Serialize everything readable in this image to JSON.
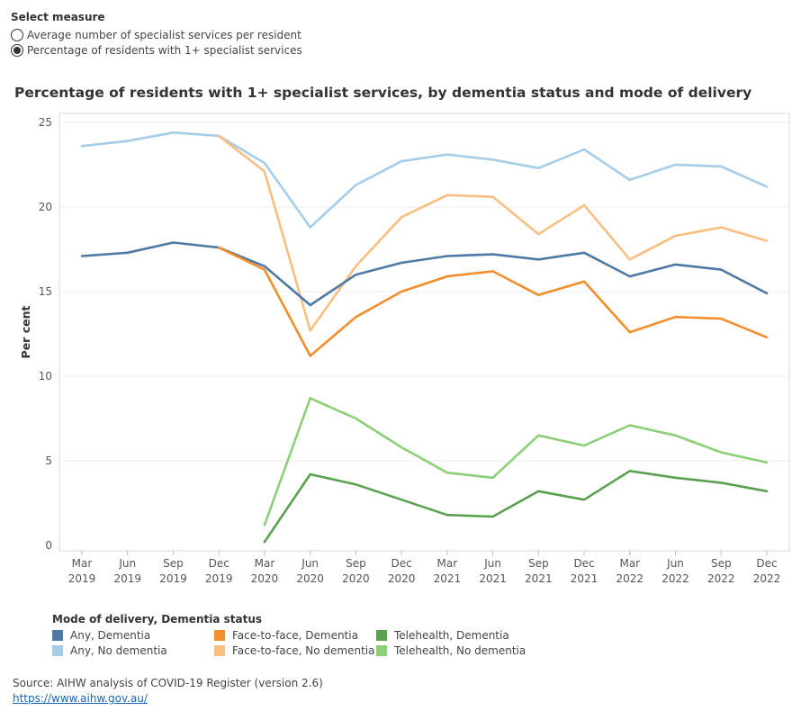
{
  "measure": {
    "header": "Select measure",
    "options": [
      {
        "label": "Average number of specialist services per resident",
        "selected": false
      },
      {
        "label": "Percentage of residents with 1+ specialist services",
        "selected": true
      }
    ]
  },
  "legend": {
    "header": "Mode of delivery, Dementia status"
  },
  "source": {
    "text": "Source: AIHW analysis of COVID-19 Register (version 2.6)",
    "link": "https://www.aihw.gov.au/"
  },
  "chart_data": {
    "type": "line",
    "title": "Percentage of residents with 1+ specialist services, by dementia status and mode of delivery",
    "ylabel": "Per cent",
    "xlabel": "",
    "ylim": [
      0,
      25
    ],
    "yticks": [
      0,
      5,
      10,
      15,
      20,
      25
    ],
    "grid": true,
    "legend_position": "bottom",
    "categories": [
      [
        "Mar",
        "2019"
      ],
      [
        "Jun",
        "2019"
      ],
      [
        "Sep",
        "2019"
      ],
      [
        "Dec",
        "2019"
      ],
      [
        "Mar",
        "2020"
      ],
      [
        "Jun",
        "2020"
      ],
      [
        "Sep",
        "2020"
      ],
      [
        "Dec",
        "2020"
      ],
      [
        "Mar",
        "2021"
      ],
      [
        "Jun",
        "2021"
      ],
      [
        "Sep",
        "2021"
      ],
      [
        "Dec",
        "2021"
      ],
      [
        "Mar",
        "2022"
      ],
      [
        "Jun",
        "2022"
      ],
      [
        "Sep",
        "2022"
      ],
      [
        "Dec",
        "2022"
      ]
    ],
    "series": [
      {
        "name": "Any, No dementia",
        "color": "#a6cde8",
        "values": [
          23.6,
          23.9,
          24.4,
          24.2,
          22.6,
          18.8,
          21.3,
          22.7,
          23.1,
          22.8,
          22.3,
          23.4,
          21.6,
          22.5,
          22.4,
          21.2
        ]
      },
      {
        "name": "Face-to-face, No dementia",
        "color": "#f9be80",
        "values": [
          null,
          null,
          null,
          24.2,
          22.1,
          12.7,
          16.5,
          19.4,
          20.7,
          20.6,
          18.4,
          20.1,
          16.9,
          18.3,
          18.8,
          18.0
        ]
      },
      {
        "name": "Any, Dementia",
        "color": "#4f79a5",
        "values": [
          17.1,
          17.3,
          17.9,
          17.6,
          16.5,
          14.2,
          16.0,
          16.7,
          17.1,
          17.2,
          16.9,
          17.3,
          15.9,
          16.6,
          16.3,
          14.9
        ]
      },
      {
        "name": "Face-to-face, Dementia",
        "color": "#f28e2b",
        "values": [
          null,
          null,
          null,
          17.6,
          16.3,
          11.2,
          13.5,
          15.0,
          15.9,
          16.2,
          14.8,
          15.6,
          12.6,
          13.5,
          13.4,
          12.3
        ]
      },
      {
        "name": "Telehealth, No dementia",
        "color": "#8bd077",
        "values": [
          null,
          null,
          null,
          null,
          1.2,
          8.7,
          7.5,
          5.8,
          4.3,
          4.0,
          6.5,
          5.9,
          7.1,
          6.5,
          5.5,
          4.9
        ]
      },
      {
        "name": "Telehealth, Dementia",
        "color": "#59a14f",
        "values": [
          null,
          null,
          null,
          null,
          0.2,
          4.2,
          3.6,
          2.7,
          1.8,
          1.7,
          3.2,
          2.7,
          4.4,
          4.0,
          3.7,
          3.2
        ]
      }
    ],
    "legend_order": [
      "Any, Dementia",
      "Face-to-face, Dementia",
      "Telehealth, Dementia",
      "Any, No dementia",
      "Face-to-face, No dementia",
      "Telehealth, No dementia"
    ]
  }
}
